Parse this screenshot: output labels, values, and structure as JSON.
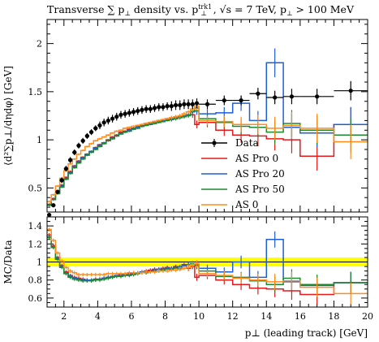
{
  "chart_data": {
    "type": "line",
    "title": "Transverse ∑p⊥ density vs. p⊥^trk1, √s = 7 TeV, p⊥ > 100 MeV",
    "title_parts": {
      "main": "Transverse ∑ p",
      "sub1": "⊥",
      "mid": " density vs. p",
      "sup": "trk1",
      "sub2": "⊥",
      "tail": ", √s = 7 TeV, p",
      "sub3": "⊥",
      "end": " > 100 MeV"
    },
    "xlabel": "p⊥ (leading track) [GeV]",
    "ylabel": "⟨d²∑p⊥/dηdφ⟩ [GeV]",
    "ratio_ylabel": "MC/Data",
    "xlim": [
      1,
      20
    ],
    "ylim": [
      0.25,
      2.25
    ],
    "ratio_ylim": [
      0.5,
      1.5
    ],
    "x_ticks": [
      2,
      4,
      6,
      8,
      10,
      12,
      14,
      16,
      18,
      20
    ],
    "y_ticks": [
      0.5,
      1,
      1.5,
      2
    ],
    "y_tick_labels": [
      "0.5",
      "1",
      "1.5",
      "2"
    ],
    "ratio_ticks": [
      0.6,
      0.8,
      1.0,
      1.2,
      1.4
    ],
    "ratio_tick_labels": [
      "0.6",
      "0.8",
      "1",
      "1.2",
      "1.4"
    ],
    "x_tick_labels": [
      "2",
      "4",
      "6",
      "8",
      "10",
      "12",
      "14",
      "16",
      "18",
      "20"
    ],
    "ratio_band": [
      0.95,
      1.05
    ],
    "bin_edges": [
      1.0,
      1.25,
      1.5,
      1.75,
      2.0,
      2.25,
      2.5,
      2.75,
      3.0,
      3.25,
      3.5,
      3.75,
      4.0,
      4.25,
      4.5,
      4.75,
      5.0,
      5.25,
      5.5,
      5.75,
      6.0,
      6.25,
      6.5,
      6.75,
      7.0,
      7.25,
      7.5,
      7.75,
      8.0,
      8.25,
      8.5,
      8.75,
      9.0,
      9.25,
      9.5,
      9.75,
      10.0,
      11.0,
      12.0,
      13.0,
      14.0,
      15.0,
      16.0,
      18.0,
      20.0
    ],
    "data": {
      "name": "Data",
      "color": "#000000",
      "x": [
        1.125,
        1.375,
        1.625,
        1.875,
        2.125,
        2.375,
        2.625,
        2.875,
        3.125,
        3.375,
        3.625,
        3.875,
        4.125,
        4.375,
        4.625,
        4.875,
        5.125,
        5.375,
        5.625,
        5.875,
        6.125,
        6.375,
        6.625,
        6.875,
        7.125,
        7.375,
        7.625,
        7.875,
        8.125,
        8.375,
        8.625,
        8.875,
        9.125,
        9.375,
        9.625,
        9.875,
        10.5,
        11.5,
        12.5,
        13.5,
        14.5,
        15.5,
        17.0,
        19.0
      ],
      "y": [
        0.22,
        0.32,
        0.46,
        0.58,
        0.7,
        0.79,
        0.87,
        0.94,
        0.99,
        1.04,
        1.08,
        1.12,
        1.15,
        1.18,
        1.2,
        1.22,
        1.24,
        1.26,
        1.27,
        1.28,
        1.29,
        1.3,
        1.31,
        1.32,
        1.32,
        1.33,
        1.34,
        1.34,
        1.35,
        1.35,
        1.36,
        1.36,
        1.37,
        1.37,
        1.37,
        1.38,
        1.37,
        1.41,
        1.41,
        1.48,
        1.44,
        1.45,
        1.45,
        1.51
      ],
      "err": [
        0.02,
        0.02,
        0.02,
        0.03,
        0.03,
        0.03,
        0.03,
        0.03,
        0.03,
        0.03,
        0.03,
        0.03,
        0.04,
        0.04,
        0.04,
        0.04,
        0.04,
        0.04,
        0.04,
        0.04,
        0.04,
        0.04,
        0.04,
        0.04,
        0.04,
        0.04,
        0.04,
        0.04,
        0.04,
        0.05,
        0.05,
        0.05,
        0.05,
        0.05,
        0.05,
        0.05,
        0.05,
        0.05,
        0.05,
        0.06,
        0.07,
        0.08,
        0.08,
        0.1
      ]
    },
    "series": [
      {
        "name": "AS Pro 0",
        "color": "#e41a1c",
        "values": [
          0.33,
          0.39,
          0.46,
          0.53,
          0.61,
          0.67,
          0.73,
          0.78,
          0.82,
          0.85,
          0.88,
          0.92,
          0.95,
          0.97,
          1.0,
          1.03,
          1.05,
          1.08,
          1.09,
          1.11,
          1.12,
          1.14,
          1.15,
          1.17,
          1.18,
          1.19,
          1.2,
          1.21,
          1.22,
          1.22,
          1.23,
          1.24,
          1.25,
          1.26,
          1.26,
          1.16,
          1.18,
          1.1,
          1.05,
          1.04,
          1.01,
          1.0,
          0.83,
          1.16
        ],
        "err": [
          0.01,
          0.01,
          0.01,
          0.01,
          0.01,
          0.01,
          0.01,
          0.01,
          0.01,
          0.01,
          0.01,
          0.01,
          0.01,
          0.01,
          0.01,
          0.01,
          0.01,
          0.01,
          0.01,
          0.01,
          0.01,
          0.01,
          0.01,
          0.01,
          0.01,
          0.01,
          0.01,
          0.01,
          0.01,
          0.02,
          0.02,
          0.02,
          0.02,
          0.02,
          0.03,
          0.04,
          0.05,
          0.06,
          0.08,
          0.1,
          0.12,
          0.14,
          0.15,
          0.18
        ],
        "ratio": [
          1.3,
          1.18,
          1.05,
          0.96,
          0.89,
          0.85,
          0.83,
          0.82,
          0.81,
          0.8,
          0.8,
          0.81,
          0.81,
          0.82,
          0.83,
          0.84,
          0.85,
          0.86,
          0.86,
          0.87,
          0.88,
          0.88,
          0.89,
          0.9,
          0.91,
          0.92,
          0.92,
          0.93,
          0.94,
          0.93,
          0.95,
          0.92,
          0.97,
          0.93,
          0.95,
          0.83,
          0.85,
          0.8,
          0.75,
          0.71,
          0.7,
          0.68,
          0.64,
          0.77
        ],
        "ratio_err": [
          0.02,
          0.02,
          0.02,
          0.02,
          0.02,
          0.02,
          0.02,
          0.02,
          0.02,
          0.02,
          0.02,
          0.02,
          0.02,
          0.02,
          0.02,
          0.02,
          0.02,
          0.02,
          0.02,
          0.02,
          0.02,
          0.02,
          0.02,
          0.02,
          0.02,
          0.02,
          0.02,
          0.02,
          0.02,
          0.02,
          0.02,
          0.02,
          0.02,
          0.03,
          0.03,
          0.04,
          0.04,
          0.05,
          0.06,
          0.07,
          0.09,
          0.1,
          0.11,
          0.12
        ]
      },
      {
        "name": "AS Pro 20",
        "color": "#1f5fd6",
        "values": [
          0.32,
          0.38,
          0.45,
          0.52,
          0.6,
          0.66,
          0.72,
          0.77,
          0.81,
          0.85,
          0.88,
          0.91,
          0.94,
          0.97,
          0.99,
          1.02,
          1.04,
          1.07,
          1.08,
          1.1,
          1.12,
          1.13,
          1.14,
          1.16,
          1.17,
          1.18,
          1.19,
          1.2,
          1.21,
          1.22,
          1.23,
          1.24,
          1.25,
          1.26,
          1.29,
          1.3,
          1.27,
          1.28,
          1.38,
          1.2,
          1.8,
          1.13,
          1.07,
          1.16
        ],
        "err": [
          0.01,
          0.01,
          0.01,
          0.01,
          0.01,
          0.01,
          0.01,
          0.01,
          0.01,
          0.01,
          0.01,
          0.01,
          0.01,
          0.01,
          0.01,
          0.01,
          0.01,
          0.01,
          0.01,
          0.01,
          0.01,
          0.01,
          0.01,
          0.01,
          0.01,
          0.01,
          0.01,
          0.01,
          0.01,
          0.02,
          0.02,
          0.02,
          0.02,
          0.02,
          0.03,
          0.04,
          0.05,
          0.06,
          0.08,
          0.1,
          0.15,
          0.14,
          0.15,
          0.18
        ],
        "ratio": [
          1.28,
          1.17,
          1.04,
          0.95,
          0.88,
          0.84,
          0.82,
          0.81,
          0.8,
          0.8,
          0.8,
          0.8,
          0.81,
          0.82,
          0.83,
          0.84,
          0.85,
          0.85,
          0.86,
          0.86,
          0.87,
          0.88,
          0.89,
          0.89,
          0.9,
          0.91,
          0.92,
          0.92,
          0.93,
          0.93,
          0.94,
          0.95,
          0.96,
          0.97,
          0.98,
          0.97,
          0.93,
          0.89,
          1.0,
          0.83,
          1.25,
          0.78,
          0.74,
          0.77
        ],
        "ratio_err": [
          0.02,
          0.02,
          0.02,
          0.02,
          0.02,
          0.02,
          0.02,
          0.02,
          0.02,
          0.02,
          0.02,
          0.02,
          0.02,
          0.02,
          0.02,
          0.02,
          0.02,
          0.02,
          0.02,
          0.02,
          0.02,
          0.02,
          0.02,
          0.02,
          0.02,
          0.02,
          0.02,
          0.02,
          0.02,
          0.02,
          0.02,
          0.02,
          0.02,
          0.03,
          0.03,
          0.04,
          0.04,
          0.05,
          0.07,
          0.07,
          0.09,
          0.1,
          0.11,
          0.12
        ]
      },
      {
        "name": "AS Pro 50",
        "color": "#1b8a2e",
        "values": [
          0.32,
          0.38,
          0.44,
          0.51,
          0.59,
          0.65,
          0.71,
          0.76,
          0.8,
          0.84,
          0.87,
          0.9,
          0.93,
          0.96,
          0.99,
          1.01,
          1.04,
          1.06,
          1.08,
          1.09,
          1.11,
          1.12,
          1.14,
          1.15,
          1.16,
          1.17,
          1.18,
          1.19,
          1.2,
          1.21,
          1.22,
          1.23,
          1.24,
          1.25,
          1.3,
          1.33,
          1.22,
          1.18,
          1.14,
          1.13,
          1.08,
          1.17,
          1.1,
          1.05
        ],
        "err": [
          0.01,
          0.01,
          0.01,
          0.01,
          0.01,
          0.01,
          0.01,
          0.01,
          0.01,
          0.01,
          0.01,
          0.01,
          0.01,
          0.01,
          0.01,
          0.01,
          0.01,
          0.01,
          0.01,
          0.01,
          0.01,
          0.01,
          0.01,
          0.01,
          0.01,
          0.01,
          0.01,
          0.01,
          0.01,
          0.02,
          0.02,
          0.02,
          0.02,
          0.02,
          0.03,
          0.04,
          0.05,
          0.06,
          0.08,
          0.1,
          0.12,
          0.14,
          0.15,
          0.18
        ],
        "ratio": [
          1.27,
          1.16,
          1.03,
          0.94,
          0.87,
          0.83,
          0.81,
          0.8,
          0.79,
          0.79,
          0.79,
          0.8,
          0.8,
          0.81,
          0.82,
          0.83,
          0.84,
          0.84,
          0.85,
          0.85,
          0.86,
          0.87,
          0.88,
          0.88,
          0.89,
          0.9,
          0.9,
          0.91,
          0.92,
          0.92,
          0.93,
          0.93,
          0.93,
          0.94,
          0.98,
          0.96,
          0.9,
          0.84,
          0.83,
          0.79,
          0.75,
          0.82,
          0.75,
          0.77
        ],
        "ratio_err": [
          0.02,
          0.02,
          0.02,
          0.02,
          0.02,
          0.02,
          0.02,
          0.02,
          0.02,
          0.02,
          0.02,
          0.02,
          0.02,
          0.02,
          0.02,
          0.02,
          0.02,
          0.02,
          0.02,
          0.02,
          0.02,
          0.02,
          0.02,
          0.02,
          0.02,
          0.02,
          0.02,
          0.02,
          0.02,
          0.02,
          0.02,
          0.02,
          0.02,
          0.03,
          0.03,
          0.04,
          0.04,
          0.05,
          0.06,
          0.07,
          0.09,
          0.1,
          0.11,
          0.12
        ]
      },
      {
        "name": "AS 0",
        "color": "#ff8c1a",
        "values": [
          0.36,
          0.43,
          0.52,
          0.6,
          0.68,
          0.75,
          0.8,
          0.85,
          0.89,
          0.93,
          0.96,
          0.99,
          1.01,
          1.03,
          1.05,
          1.07,
          1.09,
          1.1,
          1.12,
          1.13,
          1.14,
          1.15,
          1.16,
          1.17,
          1.18,
          1.19,
          1.2,
          1.21,
          1.22,
          1.23,
          1.24,
          1.25,
          1.27,
          1.29,
          1.32,
          1.35,
          1.2,
          1.19,
          1.16,
          1.16,
          1.12,
          1.15,
          1.12,
          0.98
        ],
        "err": [
          0.01,
          0.01,
          0.01,
          0.01,
          0.01,
          0.01,
          0.01,
          0.01,
          0.01,
          0.01,
          0.01,
          0.01,
          0.01,
          0.01,
          0.01,
          0.01,
          0.01,
          0.01,
          0.01,
          0.01,
          0.01,
          0.01,
          0.01,
          0.01,
          0.01,
          0.01,
          0.01,
          0.01,
          0.01,
          0.02,
          0.02,
          0.02,
          0.02,
          0.02,
          0.03,
          0.04,
          0.05,
          0.06,
          0.08,
          0.1,
          0.12,
          0.14,
          0.15,
          0.18
        ],
        "ratio": [
          1.36,
          1.24,
          1.1,
          1.01,
          0.94,
          0.9,
          0.88,
          0.86,
          0.86,
          0.86,
          0.86,
          0.86,
          0.86,
          0.86,
          0.87,
          0.87,
          0.87,
          0.87,
          0.87,
          0.88,
          0.88,
          0.88,
          0.88,
          0.89,
          0.89,
          0.89,
          0.9,
          0.9,
          0.9,
          0.91,
          0.91,
          0.92,
          0.93,
          0.94,
          0.97,
          0.98,
          0.87,
          0.85,
          0.82,
          0.8,
          0.78,
          0.79,
          0.72,
          0.65
        ],
        "ratio_err": [
          0.02,
          0.02,
          0.02,
          0.02,
          0.02,
          0.02,
          0.02,
          0.02,
          0.02,
          0.02,
          0.02,
          0.02,
          0.02,
          0.02,
          0.02,
          0.02,
          0.02,
          0.02,
          0.02,
          0.02,
          0.02,
          0.02,
          0.02,
          0.02,
          0.02,
          0.02,
          0.02,
          0.02,
          0.02,
          0.02,
          0.02,
          0.02,
          0.02,
          0.03,
          0.03,
          0.04,
          0.04,
          0.05,
          0.06,
          0.07,
          0.09,
          0.1,
          0.11,
          0.12
        ]
      }
    ],
    "legend": {
      "placement": "right, lower half of main panel",
      "entries": [
        "Data",
        "AS Pro 0",
        "AS Pro 20",
        "AS Pro 50",
        "AS 0"
      ]
    }
  }
}
